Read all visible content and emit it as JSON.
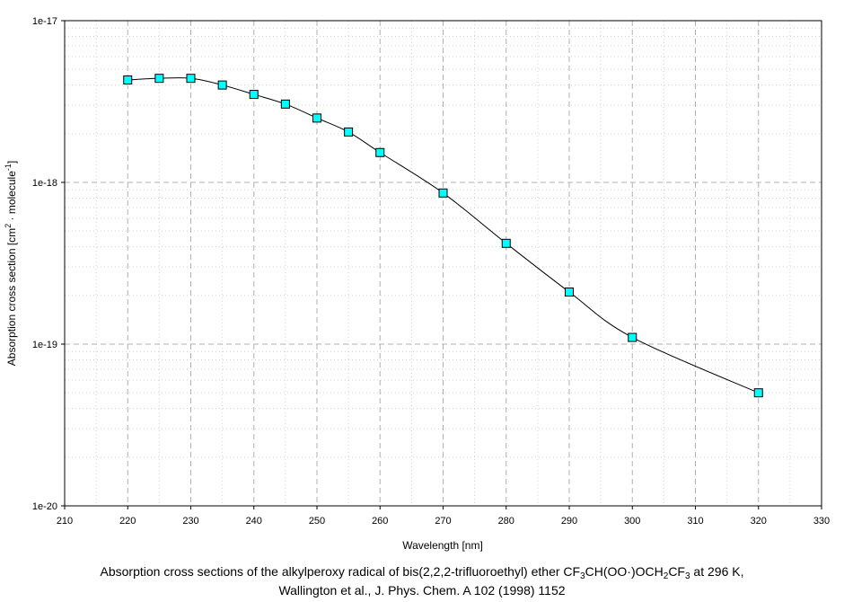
{
  "chart_data": {
    "type": "line",
    "title": "",
    "xlabel": "Wavelength [nm]",
    "ylabel_parts": {
      "prefix": "Absorption cross section [cm",
      "sup1": "2",
      "middle": " · molecule",
      "sup2": "-1",
      "suffix": "]"
    },
    "xlim": [
      210,
      330
    ],
    "x_ticks": [
      210,
      220,
      230,
      240,
      250,
      260,
      270,
      280,
      290,
      300,
      310,
      320,
      330
    ],
    "ylim": [
      1e-20,
      1e-17
    ],
    "y_scale": "log",
    "y_ticks": [
      "1e-20",
      "1e-19",
      "1e-18",
      "1e-17"
    ],
    "grid": true,
    "marker": "square",
    "marker_color": "#00FFFF",
    "line_color": "#000000",
    "series": [
      {
        "x": [
          220,
          225,
          230,
          235,
          240,
          245,
          250,
          255,
          260,
          270,
          280,
          290,
          300,
          320
        ],
        "y": [
          4.3e-18,
          4.4e-18,
          4.4e-18,
          4e-18,
          3.5e-18,
          3.05e-18,
          2.5e-18,
          2.05e-18,
          1.53e-18,
          8.6e-19,
          4.2e-19,
          2.1e-19,
          1.1e-19,
          5e-20
        ]
      }
    ]
  },
  "caption": {
    "line1_a": "Absorption cross sections of the alkylperoxy radical of bis(2,2,2-trifluoroethyl) ether CF",
    "sub1": "3",
    "line1_b": "CH(OO·)OCH",
    "sub2": "2",
    "line1_c": "CF",
    "sub3": "3",
    "line1_d": " at 296 K,",
    "line2": "Wallington et al., J. Phys. Chem. A 102 (1998) 1152"
  }
}
